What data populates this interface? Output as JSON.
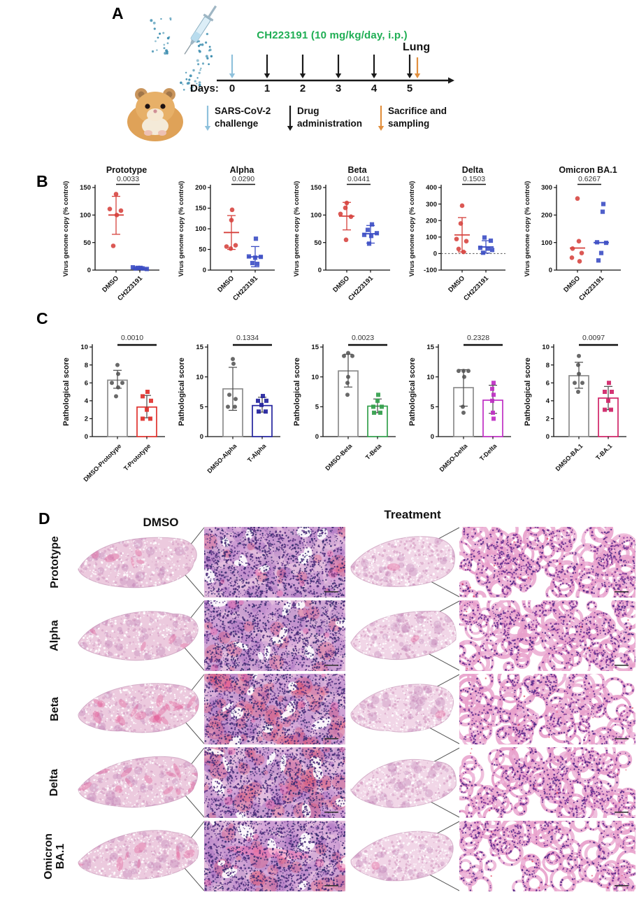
{
  "panelA": {
    "label": "A",
    "drug_label": "CH223191 (10 mg/kg/day, i.p.)",
    "drug_label_color": "#1fae54",
    "lung_label": "Lung",
    "days_label": "Days:",
    "days": [
      "0",
      "1",
      "2",
      "3",
      "4",
      "5"
    ],
    "legend": [
      {
        "name": "sars-cov-2-challenge",
        "line1": "SARS-CoV-2",
        "line2": "challenge",
        "color": "#8fc1dc"
      },
      {
        "name": "drug-administration",
        "line1": "Drug",
        "line2": "administration",
        "color": "#1a1a1a"
      },
      {
        "name": "sacrifice-and-sampling",
        "line1": "Sacrifice and",
        "line2": "sampling",
        "color": "#e2903f"
      }
    ]
  },
  "panelB": {
    "label": "B",
    "ylabel": "Virus genome copy (% control)",
    "charts": [
      {
        "title": "Prototype",
        "p": "0.0033",
        "ymin": 0,
        "ymax": 150,
        "yticks": [
          0,
          50,
          100,
          150
        ],
        "zero_dash": false,
        "groups": [
          {
            "label": "DMSO",
            "marker": "circle",
            "color": "#d6413c",
            "values": [
              138,
              111,
              108,
              100,
              44
            ],
            "dx": [
              0,
              -9,
              7,
              1,
              -4
            ],
            "mean": 100,
            "lo": 65,
            "hi": 134
          },
          {
            "label": "CH223191",
            "marker": "square",
            "color": "#3c4ec4",
            "values": [
              5,
              4,
              3,
              2,
              3,
              4
            ],
            "dx": [
              -10,
              -3,
              4,
              10,
              -6,
              1
            ],
            "mean": 3,
            "lo": 1,
            "hi": 6
          }
        ]
      },
      {
        "title": "Alpha",
        "p": "0.0290",
        "ymin": 0,
        "ymax": 200,
        "yticks": [
          0,
          50,
          100,
          150,
          200
        ],
        "zero_dash": false,
        "groups": [
          {
            "label": "DMSO",
            "marker": "circle",
            "color": "#d6413c",
            "values": [
              146,
              121,
              60,
              57,
              52
            ],
            "dx": [
              1,
              0,
              6,
              -7,
              -1
            ],
            "mean": 91,
            "lo": 50,
            "hi": 132
          },
          {
            "label": "CH223191",
            "marker": "square",
            "color": "#3c4ec4",
            "values": [
              76,
              33,
              32,
              30,
              17,
              15
            ],
            "dx": [
              1,
              -9,
              8,
              0,
              -4,
              3
            ],
            "mean": 32,
            "lo": 8,
            "hi": 57
          }
        ]
      },
      {
        "title": "Beta",
        "p": "0.0441",
        "ymin": 0,
        "ymax": 150,
        "yticks": [
          0,
          50,
          100,
          150
        ],
        "zero_dash": false,
        "groups": [
          {
            "label": "DMSO",
            "marker": "circle",
            "color": "#d6413c",
            "values": [
              122,
              113,
              102,
              97,
              55
            ],
            "dx": [
              0,
              -2,
              -9,
              6,
              -1
            ],
            "mean": 98,
            "lo": 73,
            "hi": 123
          },
          {
            "label": "CH223191",
            "marker": "square",
            "color": "#3c4ec4",
            "values": [
              83,
              73,
              67,
              64,
              62,
              48
            ],
            "dx": [
              2,
              -4,
              9,
              -9,
              1,
              -2
            ],
            "mean": 66,
            "lo": 49,
            "hi": 81
          }
        ]
      },
      {
        "title": "Delta",
        "p": "0.1503",
        "ymin": -100,
        "ymax": 400,
        "yticks": [
          -100,
          0,
          100,
          200,
          300,
          400
        ],
        "zero_dash": true,
        "groups": [
          {
            "label": "DMSO",
            "marker": "circle",
            "color": "#d6413c",
            "values": [
              290,
              182,
              88,
              75,
              28,
              10
            ],
            "dx": [
              0,
              -2,
              -8,
              6,
              -5,
              2
            ],
            "mean": 113,
            "lo": 10,
            "hi": 218
          },
          {
            "label": "CH223191",
            "marker": "square",
            "color": "#3c4ec4",
            "values": [
              97,
              78,
              35,
              30,
              22,
              5
            ],
            "dx": [
              -2,
              7,
              -8,
              3,
              9,
              -4
            ],
            "mean": 40,
            "lo": 3,
            "hi": 78
          }
        ]
      },
      {
        "title": "Omicron BA.1",
        "p": "0.6267",
        "ymin": 0,
        "ymax": 300,
        "yticks": [
          0,
          100,
          200,
          300
        ],
        "zero_dash": false,
        "groups": [
          {
            "label": "DMSO",
            "marker": "circle",
            "color": "#d6413c",
            "values": [
              260,
              105,
              78,
              62,
              45,
              32
            ],
            "dx": [
              0,
              2,
              -7,
              6,
              -8,
              3
            ],
            "mean": 80,
            "lo": null,
            "hi": null
          },
          {
            "label": "CH223191",
            "marker": "square",
            "color": "#3c4ec4",
            "values": [
              240,
              212,
              101,
              99,
              62,
              35
            ],
            "dx": [
              3,
              2,
              -6,
              7,
              0,
              -4
            ],
            "mean": 100,
            "lo": null,
            "hi": null
          }
        ]
      }
    ]
  },
  "panelC": {
    "label": "C",
    "ylabel": "Pathological score",
    "charts": [
      {
        "p": "0.0010",
        "ymin": 0,
        "ymax": 10,
        "yticks": [
          0,
          2,
          4,
          6,
          8,
          10
        ],
        "bars": [
          {
            "label": "DMSO-Prototype",
            "color": "#8c8c8c",
            "dot_color": "#4f4f4f",
            "marker": "circle",
            "value": 6.3,
            "lo": 5.4,
            "hi": 7.4,
            "points": [
              8,
              7,
              6,
              6,
              5.5,
              4.5
            ],
            "dx": [
              0,
              1,
              -8,
              7,
              1,
              -2
            ]
          },
          {
            "label": "T-Prototype",
            "color": "#e0312d",
            "dot_color": "#e0312d",
            "marker": "square",
            "value": 3.3,
            "lo": 2.1,
            "hi": 4.6,
            "points": [
              5,
              4.5,
              4,
              3,
              2,
              2
            ],
            "dx": [
              1,
              -6,
              6,
              0,
              -6,
              5
            ]
          }
        ]
      },
      {
        "p": "0.1334",
        "ymin": 0,
        "ymax": 15,
        "yticks": [
          0,
          5,
          10,
          15
        ],
        "bars": [
          {
            "label": "DMSO-Alpha",
            "color": "#8c8c8c",
            "dot_color": "#4f4f4f",
            "marker": "circle",
            "value": 8.0,
            "lo": 4.4,
            "hi": 11.6,
            "points": [
              13,
              12.2,
              7,
              6.3,
              5,
              5
            ],
            "dx": [
              0,
              1,
              -5,
              4,
              -7,
              3
            ]
          },
          {
            "label": "T-Alpha",
            "color": "#23239e",
            "dot_color": "#23239e",
            "marker": "square",
            "value": 5.2,
            "lo": 4.1,
            "hi": 6.6,
            "points": [
              6.8,
              6,
              6,
              5.3,
              4.2,
              4.2
            ],
            "dx": [
              1,
              -6,
              6,
              -1,
              -5,
              5
            ]
          }
        ]
      },
      {
        "p": "0.0023",
        "ymin": 0,
        "ymax": 15,
        "yticks": [
          0,
          5,
          10,
          15
        ],
        "bars": [
          {
            "label": "DMSO-Beta",
            "color": "#8c8c8c",
            "dot_color": "#4f4f4f",
            "marker": "circle",
            "value": 11.0,
            "lo": 8.3,
            "hi": 13.8,
            "points": [
              14,
              13.5,
              13.5,
              10,
              9,
              7
            ],
            "dx": [
              0,
              -6,
              6,
              0,
              -1,
              -1
            ]
          },
          {
            "label": "T-Beta",
            "color": "#33a04c",
            "dot_color": "#33a04c",
            "marker": "square",
            "value": 5.1,
            "lo": 4.0,
            "hi": 6.3,
            "points": [
              7,
              6,
              5,
              5,
              4,
              4
            ],
            "dx": [
              1,
              0,
              -6,
              6,
              -5,
              4
            ]
          }
        ]
      },
      {
        "p": "0.2328",
        "ymin": 0,
        "ymax": 15,
        "yticks": [
          0,
          5,
          10,
          15
        ],
        "bars": [
          {
            "label": "DMSO-Delta",
            "color": "#8c8c8c",
            "dot_color": "#4f4f4f",
            "marker": "circle",
            "value": 8.2,
            "lo": 5.1,
            "hi": 11.2,
            "points": [
              11,
              11,
              11,
              10,
              5,
              4
            ],
            "dx": [
              -7,
              0,
              7,
              1,
              -1,
              0
            ]
          },
          {
            "label": "T-Delta",
            "color": "#bf2ec4",
            "dot_color": "#bf2ec4",
            "marker": "square",
            "value": 6.1,
            "lo": 3.9,
            "hi": 8.6,
            "points": [
              9,
              8,
              7,
              6,
              4,
              3
            ],
            "dx": [
              1,
              -1,
              1,
              -1,
              0,
              1
            ]
          }
        ]
      },
      {
        "p": "0.0097",
        "ymin": 0,
        "ymax": 10,
        "yticks": [
          0,
          2,
          4,
          6,
          8,
          10
        ],
        "bars": [
          {
            "label": "DMSO-BA.1",
            "color": "#8c8c8c",
            "dot_color": "#4f4f4f",
            "marker": "circle",
            "value": 6.8,
            "lo": 5.4,
            "hi": 8.3,
            "points": [
              9,
              8,
              7,
              6,
              6,
              5
            ],
            "dx": [
              0,
              -1,
              0,
              -6,
              5,
              -1
            ]
          },
          {
            "label": "T-BA.1",
            "color": "#d02468",
            "dot_color": "#d02468",
            "marker": "square",
            "value": 4.3,
            "lo": 3.0,
            "hi": 5.6,
            "points": [
              6,
              5,
              5,
              4,
              3,
              3
            ],
            "dx": [
              1,
              -5,
              5,
              0,
              -5,
              4
            ]
          }
        ]
      }
    ]
  },
  "panelD": {
    "label": "D",
    "col_headers": [
      "DMSO",
      "Treatment"
    ],
    "rows": [
      {
        "label_lines": [
          "Prototype"
        ],
        "dmso": {
          "red": 0.18,
          "band": false
        },
        "treatment": {
          "density": 0.95
        }
      },
      {
        "label_lines": [
          "Alpha"
        ],
        "dmso": {
          "red": 0.22,
          "band": false
        },
        "treatment": {
          "density": 0.9
        }
      },
      {
        "label_lines": [
          "Beta"
        ],
        "dmso": {
          "red": 0.8,
          "band": false
        },
        "treatment": {
          "density": 0.8
        }
      },
      {
        "label_lines": [
          "Delta"
        ],
        "dmso": {
          "red": 0.55,
          "band": false
        },
        "treatment": {
          "density": 0.8
        }
      },
      {
        "label_lines": [
          "Omicron",
          "BA.1"
        ],
        "dmso": {
          "red": 0.3,
          "band": true
        },
        "treatment": {
          "density": 0.7
        }
      }
    ]
  }
}
